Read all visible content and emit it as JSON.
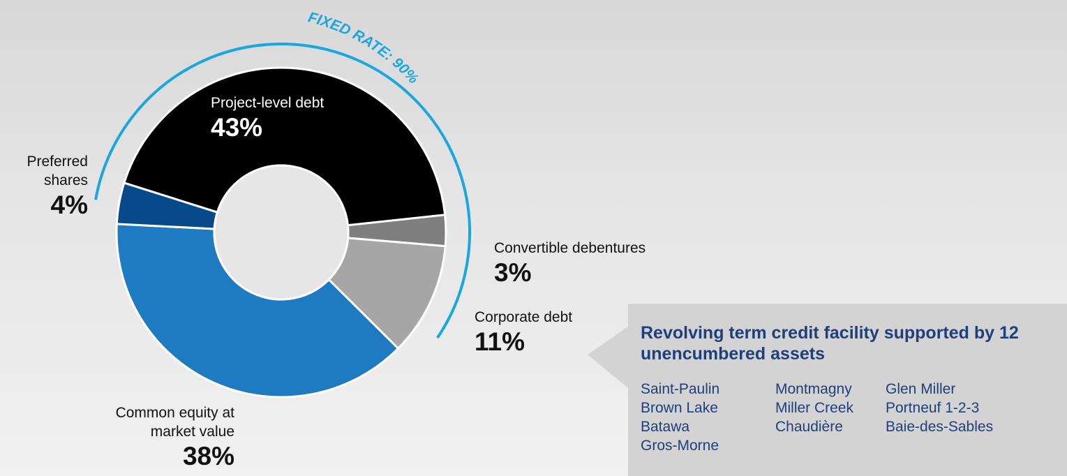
{
  "chart_data": {
    "type": "pie",
    "variant": "donut",
    "slices": [
      {
        "label": "Project-level debt",
        "value": 43,
        "display": "43%",
        "color": "#000000"
      },
      {
        "label": "Convertible debentures",
        "value": 3,
        "display": "3%",
        "color": "#7f7f7f"
      },
      {
        "label": "Corporate debt",
        "value": 11,
        "display": "11%",
        "color": "#a6a6a6"
      },
      {
        "label": "Common equity at market value",
        "value": 38,
        "display": "38%",
        "color": "#1f7bc1"
      },
      {
        "label": "Preferred shares",
        "value": 4,
        "display": "4%",
        "color": "#074a8c"
      }
    ],
    "annotation": {
      "text": "FIXED RATE: 90%",
      "value": 90,
      "color": "#1aa7e0"
    },
    "legend": "none"
  },
  "labels": {
    "project_debt": {
      "name": "Project-level debt",
      "pct": "43%"
    },
    "preferred": {
      "name_line1": "Preferred",
      "name_line2": "shares",
      "pct": "4%"
    },
    "convertible": {
      "name": "Convertible debentures",
      "pct": "3%"
    },
    "corporate": {
      "name": "Corporate debt",
      "pct": "11%"
    },
    "common": {
      "name_line1": "Common equity at",
      "name_line2": "market value",
      "pct": "38%"
    }
  },
  "callout": {
    "title": "Revolving term credit facility supported by 12 unencumbered assets",
    "assets": [
      "Saint-Paulin",
      "Montmagny",
      "Glen Miller",
      "Brown Lake",
      "Miller Creek",
      "Portneuf 1-2-3",
      "Batawa",
      "Chaudière",
      "Baie-des-Sables",
      "Gros-Morne"
    ],
    "colors": {
      "box": "#d1d1d1",
      "text": "#1f3f7a"
    }
  }
}
